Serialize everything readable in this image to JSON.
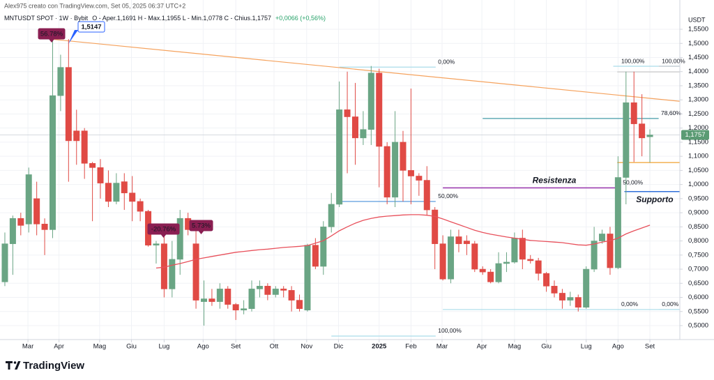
{
  "header": {
    "watermark": "Alex975 creato con TradingView.com, Set 05, 2025 06:37 UTC+2",
    "symbol": "MNTUSDT SPOT · 1W · Bybit",
    "ohlc": "O - Aper.1,1691  H - Max.1,1955  L - Min.1,0778  C - Chius.1,1757",
    "change": "+0,0066 (+0,56%)"
  },
  "logo": "TradingView",
  "chart_data": {
    "type": "candlestick",
    "currency": "USDT",
    "up_color": "#6aa584",
    "down_color": "#e04a45",
    "open": [
      0.655,
      0.79,
      0.88,
      0.86,
      0.95,
      0.86,
      0.84,
      1.315,
      1.415,
      1.19,
      1.19,
      1.075,
      1.06,
      1.005,
      0.94,
      1.01,
      0.97,
      0.94,
      0.905,
      0.785,
      0.79,
      0.63,
      0.735,
      0.88,
      0.79,
      0.585,
      0.595,
      0.585,
      0.63,
      0.575,
      0.555,
      0.56,
      0.63,
      0.64,
      0.61,
      0.63,
      0.625,
      0.59,
      0.555,
      0.785,
      0.71,
      0.85,
      0.93,
      1.265,
      1.24,
      1.165,
      1.195,
      1.395,
      1.135,
      0.955,
      1.15,
      1.05,
      1.03,
      1.015,
      0.91,
      0.79,
      0.665,
      0.815,
      0.8,
      0.79,
      0.7,
      0.69,
      0.655,
      0.72,
      0.725,
      0.81,
      0.735,
      0.73,
      0.685,
      0.64,
      0.615,
      0.59,
      0.6,
      0.565,
      0.7,
      0.8,
      0.825,
      0.705,
      1.025,
      1.29,
      1.215,
      1.1691
    ],
    "high": [
      0.83,
      0.89,
      0.9,
      1.06,
      1.01,
      0.88,
      1.51,
      1.46,
      1.515,
      1.265,
      1.2,
      1.08,
      1.09,
      1.05,
      1.04,
      1.04,
      1.03,
      0.95,
      0.91,
      0.8,
      0.85,
      0.8,
      0.91,
      0.9,
      0.84,
      0.66,
      0.63,
      0.65,
      0.64,
      0.58,
      0.59,
      0.66,
      0.66,
      0.65,
      0.64,
      0.64,
      0.64,
      0.61,
      0.79,
      0.81,
      0.87,
      0.97,
      1.365,
      1.4,
      1.36,
      1.26,
      1.42,
      1.41,
      1.15,
      1.26,
      1.19,
      1.34,
      1.04,
      1.065,
      0.92,
      0.82,
      0.84,
      0.84,
      0.82,
      0.8,
      0.71,
      0.7,
      0.76,
      0.76,
      0.83,
      0.84,
      0.75,
      0.74,
      0.69,
      0.66,
      0.63,
      0.62,
      0.61,
      0.71,
      0.85,
      0.84,
      0.85,
      1.1,
      1.4,
      1.4,
      1.32,
      1.1955
    ],
    "low": [
      0.64,
      0.68,
      0.82,
      0.83,
      0.82,
      0.75,
      0.81,
      1.26,
      1.01,
      1.07,
      1.02,
      0.87,
      0.95,
      0.92,
      0.93,
      0.91,
      0.87,
      0.87,
      0.78,
      0.72,
      0.6,
      0.6,
      0.68,
      0.82,
      0.56,
      0.5,
      0.57,
      0.56,
      0.56,
      0.52,
      0.54,
      0.55,
      0.6,
      0.59,
      0.6,
      0.6,
      0.55,
      0.55,
      0.55,
      0.7,
      0.68,
      0.83,
      0.92,
      1.04,
      1.07,
      1.14,
      1.14,
      0.99,
      0.93,
      0.92,
      0.94,
      0.93,
      0.96,
      0.89,
      0.7,
      0.66,
      0.65,
      0.76,
      0.75,
      0.69,
      0.68,
      0.65,
      0.65,
      0.69,
      0.72,
      0.7,
      0.72,
      0.66,
      0.62,
      0.6,
      0.56,
      0.57,
      0.55,
      0.56,
      0.69,
      0.79,
      0.68,
      0.7,
      0.93,
      1.08,
      1.1,
      1.0778
    ],
    "close": [
      0.79,
      0.88,
      0.855,
      1.035,
      0.86,
      0.84,
      1.315,
      1.415,
      1.155,
      1.155,
      1.075,
      1.06,
      1.005,
      0.94,
      1.005,
      0.97,
      0.94,
      0.905,
      0.785,
      0.79,
      0.63,
      0.735,
      0.88,
      0.84,
      0.59,
      0.595,
      0.585,
      0.63,
      0.575,
      0.555,
      0.56,
      0.63,
      0.64,
      0.61,
      0.63,
      0.625,
      0.59,
      0.56,
      0.785,
      0.71,
      0.85,
      0.93,
      1.265,
      1.24,
      1.165,
      1.195,
      1.395,
      1.135,
      0.955,
      1.15,
      1.05,
      1.03,
      1.015,
      0.91,
      0.79,
      0.665,
      0.815,
      0.79,
      0.79,
      0.7,
      0.69,
      0.655,
      0.72,
      0.725,
      0.81,
      0.735,
      0.73,
      0.685,
      0.64,
      0.615,
      0.59,
      0.6,
      0.565,
      0.7,
      0.8,
      0.825,
      0.705,
      1.025,
      1.29,
      1.215,
      1.165,
      1.1757
    ],
    "ma": {
      "color": "#e8505b",
      "values": [
        null,
        null,
        null,
        null,
        null,
        null,
        null,
        null,
        null,
        null,
        null,
        null,
        null,
        null,
        null,
        null,
        null,
        null,
        null,
        0.704,
        0.707,
        0.714,
        0.72,
        0.727,
        0.735,
        0.74,
        0.745,
        0.75,
        0.755,
        0.76,
        0.763,
        0.766,
        0.769,
        0.771,
        0.774,
        0.777,
        0.779,
        0.781,
        0.784,
        0.792,
        0.801,
        0.818,
        0.836,
        0.85,
        0.863,
        0.873,
        0.88,
        0.885,
        0.888,
        0.89,
        0.892,
        0.893,
        0.893,
        0.891,
        0.887,
        0.878,
        0.868,
        0.858,
        0.848,
        0.838,
        0.83,
        0.824,
        0.819,
        0.814,
        0.81,
        0.806,
        0.802,
        0.8,
        0.798,
        0.796,
        0.794,
        0.79,
        0.786,
        0.785,
        0.789,
        0.796,
        0.801,
        0.81,
        0.825,
        0.836,
        0.846,
        0.856
      ]
    },
    "ylim": [
      0.4506,
      1.6538
    ],
    "yticks": [
      {
        "value": 0.5,
        "label": "0,5000"
      },
      {
        "value": 0.55,
        "label": "0,5500"
      },
      {
        "value": 0.6,
        "label": "0,6000"
      },
      {
        "value": 0.65,
        "label": "0,6500"
      },
      {
        "value": 0.7,
        "label": "0,7000"
      },
      {
        "value": 0.75,
        "label": "0,7500"
      },
      {
        "value": 0.8,
        "label": "0,8000"
      },
      {
        "value": 0.85,
        "label": "0,8500"
      },
      {
        "value": 0.9,
        "label": "0,9000"
      },
      {
        "value": 0.95,
        "label": "0,9500"
      },
      {
        "value": 1.0,
        "label": "1,0000"
      },
      {
        "value": 1.05,
        "label": "1,0500"
      },
      {
        "value": 1.1,
        "label": "1,1000"
      },
      {
        "value": 1.15,
        "label": "1,1500"
      },
      {
        "value": 1.2,
        "label": "1,2000"
      },
      {
        "value": 1.25,
        "label": "1,2500"
      },
      {
        "value": 1.3,
        "label": "1,3000"
      },
      {
        "value": 1.35,
        "label": "1,3500"
      },
      {
        "value": 1.4,
        "label": "1,4000"
      },
      {
        "value": 1.45,
        "label": "1,4500"
      },
      {
        "value": 1.5,
        "label": "1,5000"
      },
      {
        "value": 1.55,
        "label": "1,5500"
      }
    ],
    "xlim": [
      -0.61,
      84.76
    ],
    "xticks": [
      {
        "value": 2.9,
        "label": "Mar"
      },
      {
        "value": 6.8,
        "label": "Apr"
      },
      {
        "value": 11.9,
        "label": "Mag"
      },
      {
        "value": 15.9,
        "label": "Giu"
      },
      {
        "value": 20.0,
        "label": "Lug"
      },
      {
        "value": 24.9,
        "label": "Ago"
      },
      {
        "value": 29.0,
        "label": "Set"
      },
      {
        "value": 33.8,
        "label": "Ott"
      },
      {
        "value": 37.9,
        "label": "Nov"
      },
      {
        "value": 41.9,
        "label": "Dic"
      },
      {
        "value": 47.0,
        "label": "2025",
        "bold": true
      },
      {
        "value": 51.0,
        "label": "Feb"
      },
      {
        "value": 54.9,
        "label": "Mar"
      },
      {
        "value": 59.9,
        "label": "Apr"
      },
      {
        "value": 64.0,
        "label": "Mag"
      },
      {
        "value": 68.0,
        "label": "Giu"
      },
      {
        "value": 73.0,
        "label": "Lug"
      },
      {
        "value": 77.0,
        "label": "Ago"
      },
      {
        "value": 81.0,
        "label": "Set"
      }
    ],
    "grid": true,
    "last_price": {
      "value": 1.1757,
      "label": "1,1757",
      "color": "#5b9b74"
    },
    "trendline": {
      "values": [
        1.5147,
        1.295
      ],
      "color": "#f5a25d"
    },
    "levels": [
      {
        "value": 1.416,
        "label": "0,00%",
        "color": "#a9dcea"
      },
      {
        "value": 0.94,
        "label": "50,00%",
        "color": "#4a90d9"
      },
      {
        "value": 0.463,
        "label": "100,00%",
        "color": "#a9dcea"
      },
      {
        "value": 1.419,
        "label": "100,00%",
        "color": "#a9dcea"
      },
      {
        "value": 1.234,
        "label": "78,60%",
        "color": "#2f8f9d"
      },
      {
        "value": 0.988,
        "label": "50,00%",
        "name": "Resistenza",
        "color": "#9c3fb0"
      },
      {
        "value": 0.557,
        "label": "0,00%",
        "color": "#a9dcea"
      },
      {
        "value": 1.419,
        "label": "100,00%",
        "color": "#b9c4cc"
      },
      {
        "value": 0.557,
        "label": "0,00%",
        "color": "#a9dcea"
      },
      {
        "value": 1.399,
        "color": "#c8c8c8"
      },
      {
        "value": 1.0778,
        "color": "#f0a030"
      },
      {
        "value": 0.975,
        "name": "Supporto",
        "color": "#2f6fd9"
      }
    ],
    "callouts": [
      {
        "text": "56.78%",
        "color": "#8a1f52"
      },
      {
        "text": "1,5147",
        "color": "#2962ff"
      },
      {
        "text": "-20.76%",
        "color": "#8a1f52"
      },
      {
        "text": "5.73%",
        "color": "#8a1f52"
      }
    ]
  }
}
